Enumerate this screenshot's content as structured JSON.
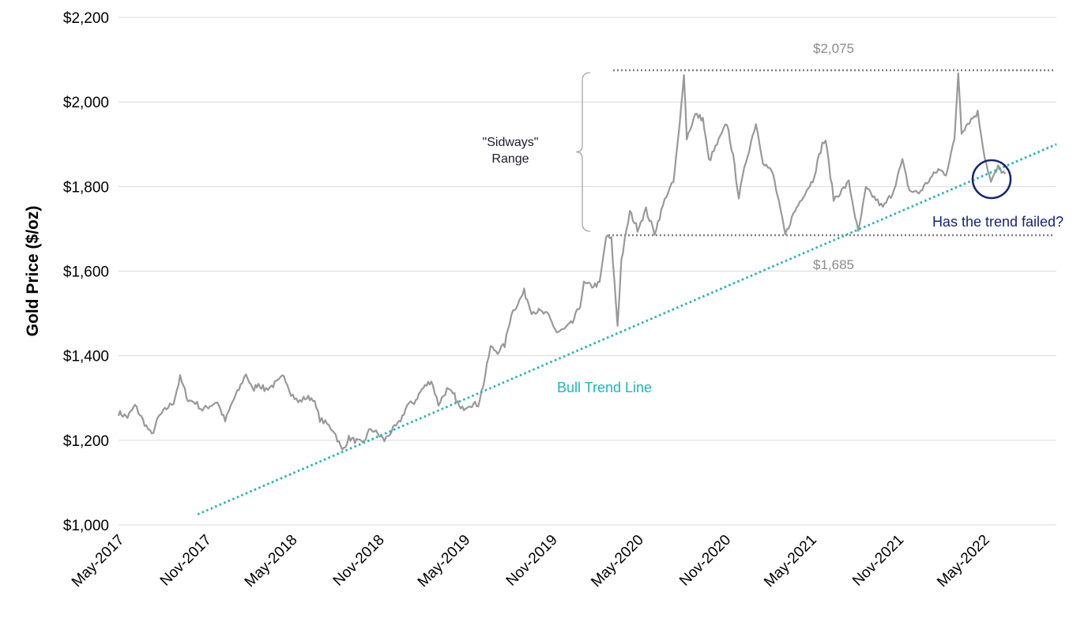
{
  "chart_data": {
    "type": "line",
    "ylabel": "Gold Price ($/oz)",
    "ylim": [
      1000,
      2200
    ],
    "yticks": [
      1000,
      1200,
      1400,
      1600,
      1800,
      2000,
      2200
    ],
    "ytick_labels": [
      "$1,000",
      "$1,200",
      "$1,400",
      "$1,600",
      "$1,800",
      "$2,000",
      "$2,200"
    ],
    "xlim": [
      "2017-05",
      "2022-10"
    ],
    "xtick_labels": [
      "May-2017",
      "Nov-2017",
      "May-2018",
      "Nov-2018",
      "May-2019",
      "Nov-2019",
      "May-2020",
      "Nov-2020",
      "May-2021",
      "Nov-2021",
      "May-2022"
    ],
    "xticks": [
      "2017-05",
      "2017-11",
      "2018-05",
      "2018-11",
      "2019-05",
      "2019-11",
      "2020-05",
      "2020-11",
      "2021-05",
      "2021-11",
      "2022-05"
    ],
    "grid": "horizontal",
    "series": [
      {
        "color": "#999999",
        "points": [
          [
            "2017-05-01",
            1265
          ],
          [
            "2017-05-20",
            1255
          ],
          [
            "2017-06-05",
            1282
          ],
          [
            "2017-06-25",
            1240
          ],
          [
            "2017-07-10",
            1212
          ],
          [
            "2017-07-25",
            1255
          ],
          [
            "2017-08-10",
            1275
          ],
          [
            "2017-08-25",
            1290
          ],
          [
            "2017-09-08",
            1348
          ],
          [
            "2017-09-25",
            1295
          ],
          [
            "2017-10-10",
            1290
          ],
          [
            "2017-10-25",
            1272
          ],
          [
            "2017-11-10",
            1282
          ],
          [
            "2017-11-25",
            1292
          ],
          [
            "2017-12-12",
            1245
          ],
          [
            "2017-12-27",
            1290
          ],
          [
            "2018-01-10",
            1320
          ],
          [
            "2018-01-25",
            1358
          ],
          [
            "2018-02-08",
            1318
          ],
          [
            "2018-02-20",
            1335
          ],
          [
            "2018-03-05",
            1320
          ],
          [
            "2018-03-20",
            1328
          ],
          [
            "2018-04-05",
            1340
          ],
          [
            "2018-04-15",
            1355
          ],
          [
            "2018-04-30",
            1312
          ],
          [
            "2018-05-15",
            1290
          ],
          [
            "2018-05-30",
            1300
          ],
          [
            "2018-06-15",
            1300
          ],
          [
            "2018-06-30",
            1250
          ],
          [
            "2018-07-15",
            1238
          ],
          [
            "2018-07-30",
            1222
          ],
          [
            "2018-08-16",
            1175
          ],
          [
            "2018-08-30",
            1205
          ],
          [
            "2018-09-15",
            1198
          ],
          [
            "2018-09-28",
            1192
          ],
          [
            "2018-10-15",
            1228
          ],
          [
            "2018-10-30",
            1215
          ],
          [
            "2018-11-13",
            1200
          ],
          [
            "2018-11-28",
            1222
          ],
          [
            "2018-12-14",
            1240
          ],
          [
            "2018-12-31",
            1282
          ],
          [
            "2019-01-15",
            1290
          ],
          [
            "2019-01-31",
            1320
          ],
          [
            "2019-02-20",
            1342
          ],
          [
            "2019-03-07",
            1285
          ],
          [
            "2019-03-25",
            1320
          ],
          [
            "2019-04-10",
            1305
          ],
          [
            "2019-04-23",
            1272
          ],
          [
            "2019-05-10",
            1285
          ],
          [
            "2019-05-30",
            1285
          ],
          [
            "2019-06-10",
            1332
          ],
          [
            "2019-06-25",
            1420
          ],
          [
            "2019-07-10",
            1410
          ],
          [
            "2019-07-25",
            1425
          ],
          [
            "2019-08-08",
            1500
          ],
          [
            "2019-08-25",
            1530
          ],
          [
            "2019-09-04",
            1552
          ],
          [
            "2019-09-20",
            1505
          ],
          [
            "2019-10-05",
            1505
          ],
          [
            "2019-10-25",
            1495
          ],
          [
            "2019-11-12",
            1455
          ],
          [
            "2019-11-28",
            1462
          ],
          [
            "2019-12-15",
            1478
          ],
          [
            "2019-12-31",
            1520
          ],
          [
            "2020-01-08",
            1570
          ],
          [
            "2020-01-25",
            1565
          ],
          [
            "2020-02-10",
            1570
          ],
          [
            "2020-02-24",
            1682
          ],
          [
            "2020-03-06",
            1675
          ],
          [
            "2020-03-19",
            1472
          ],
          [
            "2020-03-27",
            1625
          ],
          [
            "2020-04-14",
            1740
          ],
          [
            "2020-04-30",
            1700
          ],
          [
            "2020-05-18",
            1745
          ],
          [
            "2020-06-05",
            1690
          ],
          [
            "2020-06-30",
            1780
          ],
          [
            "2020-07-15",
            1810
          ],
          [
            "2020-07-28",
            1945
          ],
          [
            "2020-08-06",
            2070
          ],
          [
            "2020-08-12",
            1915
          ],
          [
            "2020-08-30",
            1970
          ],
          [
            "2020-09-15",
            1960
          ],
          [
            "2020-09-28",
            1860
          ],
          [
            "2020-10-15",
            1900
          ],
          [
            "2020-11-05",
            1950
          ],
          [
            "2020-11-18",
            1870
          ],
          [
            "2020-11-30",
            1775
          ],
          [
            "2020-12-15",
            1860
          ],
          [
            "2021-01-05",
            1950
          ],
          [
            "2021-01-20",
            1860
          ],
          [
            "2021-02-10",
            1830
          ],
          [
            "2021-03-08",
            1685
          ],
          [
            "2021-03-25",
            1735
          ],
          [
            "2021-04-15",
            1780
          ],
          [
            "2021-05-05",
            1815
          ],
          [
            "2021-05-25",
            1900
          ],
          [
            "2021-06-01",
            1910
          ],
          [
            "2021-06-18",
            1770
          ],
          [
            "2021-07-05",
            1790
          ],
          [
            "2021-07-20",
            1810
          ],
          [
            "2021-08-09",
            1690
          ],
          [
            "2021-08-25",
            1795
          ],
          [
            "2021-09-15",
            1770
          ],
          [
            "2021-09-30",
            1750
          ],
          [
            "2021-10-20",
            1785
          ],
          [
            "2021-11-10",
            1860
          ],
          [
            "2021-11-25",
            1790
          ],
          [
            "2021-12-15",
            1785
          ],
          [
            "2022-01-05",
            1815
          ],
          [
            "2022-01-25",
            1840
          ],
          [
            "2022-02-10",
            1830
          ],
          [
            "2022-02-28",
            1910
          ],
          [
            "2022-03-08",
            2070
          ],
          [
            "2022-03-15",
            1930
          ],
          [
            "2022-03-28",
            1950
          ],
          [
            "2022-04-18",
            1975
          ],
          [
            "2022-05-03",
            1870
          ],
          [
            "2022-05-16",
            1810
          ],
          [
            "2022-05-31",
            1845
          ],
          [
            "2022-06-15",
            1830
          ]
        ]
      }
    ],
    "annotations": {
      "range_high_label": "$2,075",
      "range_high_value": 2075,
      "range_low_label": "$1,685",
      "range_low_value": 1685,
      "range_label_line1": "\"Sidways\"",
      "range_label_line2": "Range",
      "trend_label": "Bull Trend Line",
      "trend_line": {
        "from": [
          "2017-10-15",
          1025
        ],
        "to": [
          "2022-10-01",
          1900
        ],
        "color": "#1fb5b5"
      },
      "question": "Has the trend failed?",
      "question_color": "#14237a",
      "circle_center": [
        "2022-05-20",
        1820
      ]
    }
  }
}
